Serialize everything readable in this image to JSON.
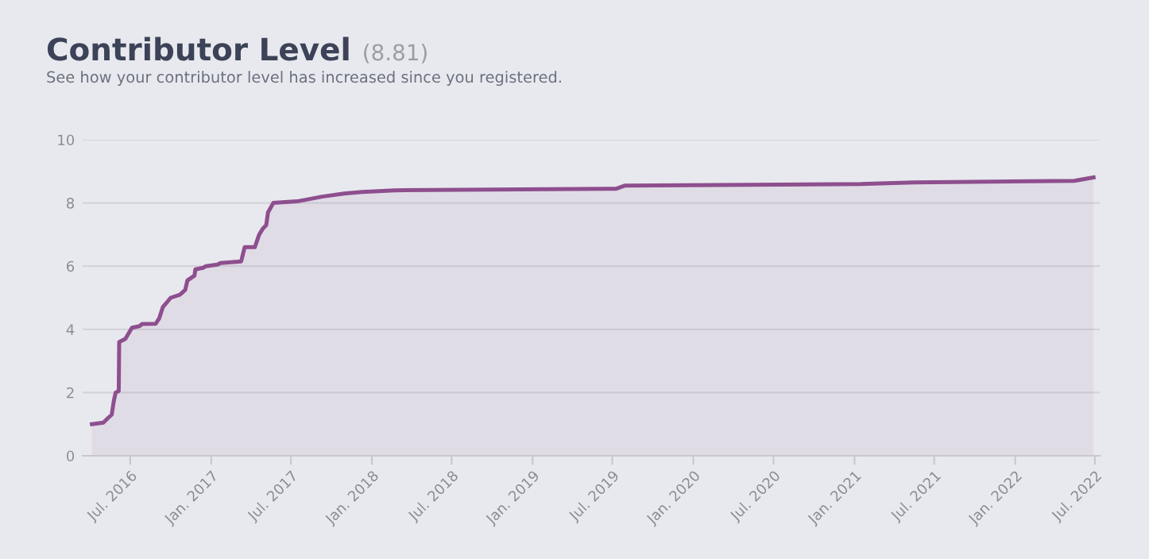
{
  "chart_data": {
    "type": "area",
    "title": "Contributor Level",
    "subtitle": "See how your contributor level has increased since you registered.",
    "annotations": [
      "(8.81)"
    ],
    "x": [
      "2016-04-05",
      "2016-05-01",
      "2016-05-12",
      "2016-05-20",
      "2016-05-25",
      "2016-05-29",
      "2016-06-05",
      "2016-06-06",
      "2016-06-20",
      "2016-07-05",
      "2016-07-22",
      "2016-07-28",
      "2016-08-28",
      "2016-09-05",
      "2016-09-13",
      "2016-10-01",
      "2016-10-22",
      "2016-11-03",
      "2016-11-08",
      "2016-11-24",
      "2016-11-26",
      "2016-12-14",
      "2016-12-20",
      "2017-01-15",
      "2017-01-22",
      "2017-03-10",
      "2017-03-18",
      "2017-04-10",
      "2017-04-20",
      "2017-04-29",
      "2017-05-06",
      "2017-05-10",
      "2017-05-22",
      "2017-07-15",
      "2017-09-10",
      "2017-10-30",
      "2017-12-10",
      "2018-02-22",
      "2019-07-10",
      "2019-07-30",
      "2021-01-15",
      "2021-05-15",
      "2022-05-15",
      "2022-06-28"
    ],
    "series": [
      {
        "color": "#8e4f8e",
        "values": [
          1.0,
          1.05,
          1.2,
          1.3,
          1.75,
          2.0,
          2.05,
          3.6,
          3.7,
          4.05,
          4.1,
          4.17,
          4.18,
          4.35,
          4.7,
          5.0,
          5.1,
          5.25,
          5.55,
          5.7,
          5.9,
          5.95,
          6.0,
          6.05,
          6.1,
          6.15,
          6.6,
          6.6,
          7.0,
          7.2,
          7.3,
          7.7,
          8.0,
          8.05,
          8.2,
          8.3,
          8.35,
          8.4,
          8.45,
          8.55,
          8.6,
          8.65,
          8.7,
          8.81
        ]
      }
    ],
    "ylim": [
      0,
      10
    ],
    "yticks": [
      0,
      2,
      4,
      6,
      8,
      10
    ],
    "xlim": [
      "2016-03-15",
      "2022-07-12"
    ],
    "xticks": [
      {
        "value": "2016-07-01",
        "label": "Jul. 2016"
      },
      {
        "value": "2017-01-01",
        "label": "Jan. 2017"
      },
      {
        "value": "2017-07-01",
        "label": "Jul. 2017"
      },
      {
        "value": "2018-01-01",
        "label": "Jan. 2018"
      },
      {
        "value": "2018-07-01",
        "label": "Jul. 2018"
      },
      {
        "value": "2019-01-01",
        "label": "Jan. 2019"
      },
      {
        "value": "2019-07-01",
        "label": "Jul. 2019"
      },
      {
        "value": "2020-01-01",
        "label": "Jan. 2020"
      },
      {
        "value": "2020-07-01",
        "label": "Jul. 2020"
      },
      {
        "value": "2021-01-01",
        "label": "Jan. 2021"
      },
      {
        "value": "2021-07-01",
        "label": "Jul. 2021"
      },
      {
        "value": "2022-01-01",
        "label": "Jan. 2022"
      },
      {
        "value": "2022-07-01",
        "label": "Jul. 2022"
      }
    ],
    "grid": "y",
    "marker": "none",
    "line_style": "solid"
  }
}
